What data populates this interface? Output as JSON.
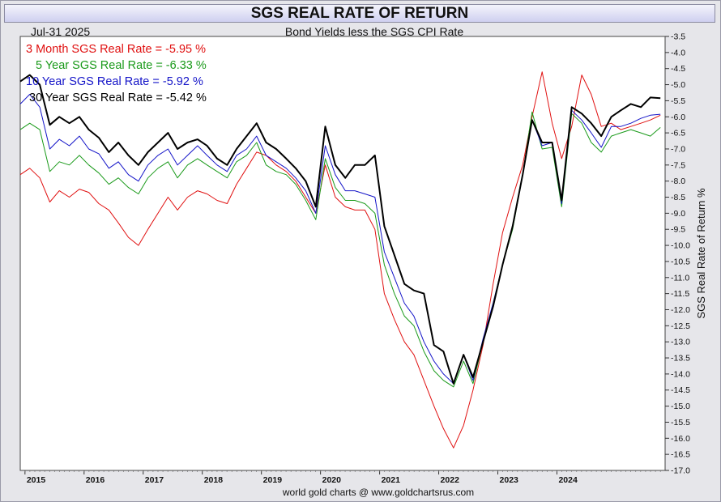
{
  "chart_data": {
    "type": "line",
    "title": "SGS REAL RATE OF RETURN",
    "subtitle": "Bond Yields less the SGS CPI Rate",
    "date_label": "Jul-31  2025",
    "ylabel": "SGS Real Rate of Return %",
    "footer": "world gold charts @ www.goldchartsrus.com",
    "grid": false,
    "legend_position": "top-left",
    "x_range": [
      2014.92,
      2025.83
    ],
    "ylim": [
      -17.0,
      -3.5
    ],
    "x_ticks": [
      "2015",
      "2016",
      "2017",
      "2018",
      "2019",
      "2020",
      "2021",
      "2022",
      "2023",
      "2024"
    ],
    "y_ticks": [
      "-3.5",
      "-4.0",
      "-4.5",
      "-5.0",
      "-5.5",
      "-6.0",
      "-6.5",
      "-7.0",
      "-7.5",
      "-8.0",
      "-8.5",
      "-9.0",
      "-9.5",
      "-10.0",
      "-10.5",
      "-11.0",
      "-11.5",
      "-12.0",
      "-12.5",
      "-13.0",
      "-13.5",
      "-14.0",
      "-14.5",
      "-15.0",
      "-15.5",
      "-16.0",
      "-16.5",
      "-17.0"
    ],
    "series": [
      {
        "name": "3 Month SGS Real Rate",
        "label": "3 Month SGS Real Rate = -5.95 %",
        "color": "#e01010",
        "width": 1,
        "points": [
          [
            2014.92,
            -7.8
          ],
          [
            2015.08,
            -7.6
          ],
          [
            2015.25,
            -7.9
          ],
          [
            2015.42,
            -8.65
          ],
          [
            2015.58,
            -8.3
          ],
          [
            2015.75,
            -8.5
          ],
          [
            2015.92,
            -8.25
          ],
          [
            2016.08,
            -8.35
          ],
          [
            2016.25,
            -8.7
          ],
          [
            2016.42,
            -8.9
          ],
          [
            2016.58,
            -9.3
          ],
          [
            2016.75,
            -9.75
          ],
          [
            2016.92,
            -10.0
          ],
          [
            2017.08,
            -9.5
          ],
          [
            2017.25,
            -9.0
          ],
          [
            2017.42,
            -8.5
          ],
          [
            2017.58,
            -8.9
          ],
          [
            2017.75,
            -8.5
          ],
          [
            2017.92,
            -8.3
          ],
          [
            2018.08,
            -8.4
          ],
          [
            2018.25,
            -8.6
          ],
          [
            2018.42,
            -8.7
          ],
          [
            2018.58,
            -8.1
          ],
          [
            2018.75,
            -7.6
          ],
          [
            2018.92,
            -7.1
          ],
          [
            2019.08,
            -7.2
          ],
          [
            2019.25,
            -7.5
          ],
          [
            2019.42,
            -7.7
          ],
          [
            2019.58,
            -8.0
          ],
          [
            2019.75,
            -8.5
          ],
          [
            2019.92,
            -9.0
          ],
          [
            2020.08,
            -7.5
          ],
          [
            2020.25,
            -8.5
          ],
          [
            2020.42,
            -8.8
          ],
          [
            2020.58,
            -8.9
          ],
          [
            2020.75,
            -8.9
          ],
          [
            2020.92,
            -9.5
          ],
          [
            2021.08,
            -11.5
          ],
          [
            2021.25,
            -12.3
          ],
          [
            2021.42,
            -13.0
          ],
          [
            2021.58,
            -13.4
          ],
          [
            2021.75,
            -14.2
          ],
          [
            2021.92,
            -15.0
          ],
          [
            2022.08,
            -15.7
          ],
          [
            2022.25,
            -16.3
          ],
          [
            2022.42,
            -15.6
          ],
          [
            2022.58,
            -14.5
          ],
          [
            2022.75,
            -13.1
          ],
          [
            2022.92,
            -11.2
          ],
          [
            2023.08,
            -9.6
          ],
          [
            2023.25,
            -8.5
          ],
          [
            2023.42,
            -7.5
          ],
          [
            2023.58,
            -6.0
          ],
          [
            2023.75,
            -4.6
          ],
          [
            2023.92,
            -6.2
          ],
          [
            2024.08,
            -7.3
          ],
          [
            2024.25,
            -6.3
          ],
          [
            2024.42,
            -4.7
          ],
          [
            2024.58,
            -5.3
          ],
          [
            2024.75,
            -6.3
          ],
          [
            2024.92,
            -6.2
          ],
          [
            2025.08,
            -6.4
          ],
          [
            2025.25,
            -6.3
          ],
          [
            2025.42,
            -6.2
          ],
          [
            2025.58,
            -6.1
          ],
          [
            2025.75,
            -5.95
          ]
        ]
      },
      {
        "name": "5 Year SGS Real Rate",
        "label": "5 Year SGS Real Rate = -6.33 %",
        "color": "#1a9a1a",
        "width": 1,
        "points": [
          [
            2014.92,
            -6.4
          ],
          [
            2015.08,
            -6.2
          ],
          [
            2015.25,
            -6.4
          ],
          [
            2015.42,
            -7.7
          ],
          [
            2015.58,
            -7.4
          ],
          [
            2015.75,
            -7.5
          ],
          [
            2015.92,
            -7.2
          ],
          [
            2016.08,
            -7.5
          ],
          [
            2016.25,
            -7.75
          ],
          [
            2016.42,
            -8.1
          ],
          [
            2016.58,
            -7.9
          ],
          [
            2016.75,
            -8.2
          ],
          [
            2016.92,
            -8.4
          ],
          [
            2017.08,
            -7.9
          ],
          [
            2017.25,
            -7.6
          ],
          [
            2017.42,
            -7.4
          ],
          [
            2017.58,
            -7.9
          ],
          [
            2017.75,
            -7.5
          ],
          [
            2017.92,
            -7.3
          ],
          [
            2018.08,
            -7.5
          ],
          [
            2018.25,
            -7.7
          ],
          [
            2018.42,
            -7.9
          ],
          [
            2018.58,
            -7.4
          ],
          [
            2018.75,
            -7.2
          ],
          [
            2018.92,
            -6.8
          ],
          [
            2019.08,
            -7.5
          ],
          [
            2019.25,
            -7.7
          ],
          [
            2019.42,
            -7.8
          ],
          [
            2019.58,
            -8.1
          ],
          [
            2019.75,
            -8.6
          ],
          [
            2019.92,
            -9.2
          ],
          [
            2020.08,
            -7.3
          ],
          [
            2020.25,
            -8.2
          ],
          [
            2020.42,
            -8.6
          ],
          [
            2020.58,
            -8.6
          ],
          [
            2020.75,
            -8.7
          ],
          [
            2020.92,
            -9.0
          ],
          [
            2021.08,
            -10.6
          ],
          [
            2021.25,
            -11.5
          ],
          [
            2021.42,
            -12.2
          ],
          [
            2021.58,
            -12.5
          ],
          [
            2021.75,
            -13.3
          ],
          [
            2021.92,
            -13.9
          ],
          [
            2022.08,
            -14.2
          ],
          [
            2022.25,
            -14.4
          ],
          [
            2022.42,
            -13.6
          ],
          [
            2022.58,
            -14.3
          ],
          [
            2022.75,
            -13.0
          ],
          [
            2022.92,
            -11.8
          ],
          [
            2023.08,
            -10.6
          ],
          [
            2023.25,
            -9.5
          ],
          [
            2023.42,
            -7.8
          ],
          [
            2023.58,
            -5.85
          ],
          [
            2023.75,
            -7.0
          ],
          [
            2023.92,
            -6.95
          ],
          [
            2024.08,
            -8.8
          ],
          [
            2024.25,
            -5.9
          ],
          [
            2024.42,
            -6.2
          ],
          [
            2024.58,
            -6.8
          ],
          [
            2024.75,
            -7.1
          ],
          [
            2024.92,
            -6.6
          ],
          [
            2025.08,
            -6.5
          ],
          [
            2025.25,
            -6.4
          ],
          [
            2025.42,
            -6.5
          ],
          [
            2025.58,
            -6.6
          ],
          [
            2025.75,
            -6.33
          ]
        ]
      },
      {
        "name": "10 Year SGS Real Rate",
        "label": "10 Year SGS Real Rate = -5.92 %",
        "color": "#1414c8",
        "width": 1,
        "points": [
          [
            2014.92,
            -5.6
          ],
          [
            2015.08,
            -5.3
          ],
          [
            2015.25,
            -5.7
          ],
          [
            2015.42,
            -7.0
          ],
          [
            2015.58,
            -6.7
          ],
          [
            2015.75,
            -6.9
          ],
          [
            2015.92,
            -6.6
          ],
          [
            2016.08,
            -7.0
          ],
          [
            2016.25,
            -7.15
          ],
          [
            2016.42,
            -7.6
          ],
          [
            2016.58,
            -7.4
          ],
          [
            2016.75,
            -7.8
          ],
          [
            2016.92,
            -8.0
          ],
          [
            2017.08,
            -7.5
          ],
          [
            2017.25,
            -7.2
          ],
          [
            2017.42,
            -7.0
          ],
          [
            2017.58,
            -7.5
          ],
          [
            2017.75,
            -7.2
          ],
          [
            2017.92,
            -6.9
          ],
          [
            2018.08,
            -7.2
          ],
          [
            2018.25,
            -7.5
          ],
          [
            2018.42,
            -7.7
          ],
          [
            2018.58,
            -7.2
          ],
          [
            2018.75,
            -7.0
          ],
          [
            2018.92,
            -6.6
          ],
          [
            2019.08,
            -7.2
          ],
          [
            2019.25,
            -7.4
          ],
          [
            2019.42,
            -7.6
          ],
          [
            2019.58,
            -7.9
          ],
          [
            2019.75,
            -8.3
          ],
          [
            2019.92,
            -9.0
          ],
          [
            2020.08,
            -6.9
          ],
          [
            2020.25,
            -7.8
          ],
          [
            2020.42,
            -8.3
          ],
          [
            2020.58,
            -8.3
          ],
          [
            2020.75,
            -8.4
          ],
          [
            2020.92,
            -8.5
          ],
          [
            2021.08,
            -10.2
          ],
          [
            2021.25,
            -11.0
          ],
          [
            2021.42,
            -11.8
          ],
          [
            2021.58,
            -12.2
          ],
          [
            2021.75,
            -13.0
          ],
          [
            2021.92,
            -13.6
          ],
          [
            2022.08,
            -14.0
          ],
          [
            2022.25,
            -14.3
          ],
          [
            2022.42,
            -13.4
          ],
          [
            2022.58,
            -14.2
          ],
          [
            2022.75,
            -12.9
          ],
          [
            2022.92,
            -11.8
          ],
          [
            2023.08,
            -10.6
          ],
          [
            2023.25,
            -9.4
          ],
          [
            2023.42,
            -7.8
          ],
          [
            2023.58,
            -6.1
          ],
          [
            2023.75,
            -6.9
          ],
          [
            2023.92,
            -6.8
          ],
          [
            2024.08,
            -8.7
          ],
          [
            2024.25,
            -5.8
          ],
          [
            2024.42,
            -6.1
          ],
          [
            2024.58,
            -6.5
          ],
          [
            2024.75,
            -6.95
          ],
          [
            2024.92,
            -6.3
          ],
          [
            2025.08,
            -6.3
          ],
          [
            2025.25,
            -6.2
          ],
          [
            2025.42,
            -6.05
          ],
          [
            2025.58,
            -5.95
          ],
          [
            2025.75,
            -5.92
          ]
        ]
      },
      {
        "name": "30 Year SGS Real Rate",
        "label": "30 Year SGS Real Rate = -5.42 %",
        "color": "#000000",
        "width": 2,
        "points": [
          [
            2014.92,
            -4.9
          ],
          [
            2015.08,
            -4.7
          ],
          [
            2015.25,
            -5.0
          ],
          [
            2015.42,
            -6.25
          ],
          [
            2015.58,
            -6.0
          ],
          [
            2015.75,
            -6.2
          ],
          [
            2015.92,
            -6.0
          ],
          [
            2016.08,
            -6.4
          ],
          [
            2016.25,
            -6.65
          ],
          [
            2016.42,
            -7.1
          ],
          [
            2016.58,
            -6.8
          ],
          [
            2016.75,
            -7.2
          ],
          [
            2016.92,
            -7.5
          ],
          [
            2017.08,
            -7.1
          ],
          [
            2017.25,
            -6.8
          ],
          [
            2017.42,
            -6.5
          ],
          [
            2017.58,
            -7.0
          ],
          [
            2017.75,
            -6.8
          ],
          [
            2017.92,
            -6.7
          ],
          [
            2018.08,
            -6.9
          ],
          [
            2018.25,
            -7.3
          ],
          [
            2018.42,
            -7.5
          ],
          [
            2018.58,
            -7.0
          ],
          [
            2018.75,
            -6.6
          ],
          [
            2018.92,
            -6.2
          ],
          [
            2019.08,
            -6.8
          ],
          [
            2019.25,
            -7.0
          ],
          [
            2019.42,
            -7.3
          ],
          [
            2019.58,
            -7.6
          ],
          [
            2019.75,
            -8.0
          ],
          [
            2019.92,
            -8.8
          ],
          [
            2020.08,
            -6.3
          ],
          [
            2020.25,
            -7.5
          ],
          [
            2020.42,
            -7.9
          ],
          [
            2020.58,
            -7.5
          ],
          [
            2020.75,
            -7.5
          ],
          [
            2020.92,
            -7.2
          ],
          [
            2021.08,
            -9.4
          ],
          [
            2021.25,
            -10.3
          ],
          [
            2021.42,
            -11.2
          ],
          [
            2021.58,
            -11.4
          ],
          [
            2021.75,
            -11.5
          ],
          [
            2021.92,
            -13.1
          ],
          [
            2022.08,
            -13.3
          ],
          [
            2022.25,
            -14.3
          ],
          [
            2022.42,
            -13.4
          ],
          [
            2022.58,
            -14.1
          ],
          [
            2022.75,
            -13.0
          ],
          [
            2022.92,
            -11.9
          ],
          [
            2023.08,
            -10.6
          ],
          [
            2023.25,
            -9.4
          ],
          [
            2023.42,
            -7.8
          ],
          [
            2023.58,
            -6.1
          ],
          [
            2023.75,
            -6.8
          ],
          [
            2023.92,
            -6.8
          ],
          [
            2024.08,
            -8.6
          ],
          [
            2024.25,
            -5.7
          ],
          [
            2024.42,
            -5.9
          ],
          [
            2024.58,
            -6.2
          ],
          [
            2024.75,
            -6.6
          ],
          [
            2024.92,
            -6.0
          ],
          [
            2025.08,
            -5.8
          ],
          [
            2025.25,
            -5.6
          ],
          [
            2025.42,
            -5.7
          ],
          [
            2025.58,
            -5.4
          ],
          [
            2025.75,
            -5.42
          ]
        ]
      }
    ]
  }
}
